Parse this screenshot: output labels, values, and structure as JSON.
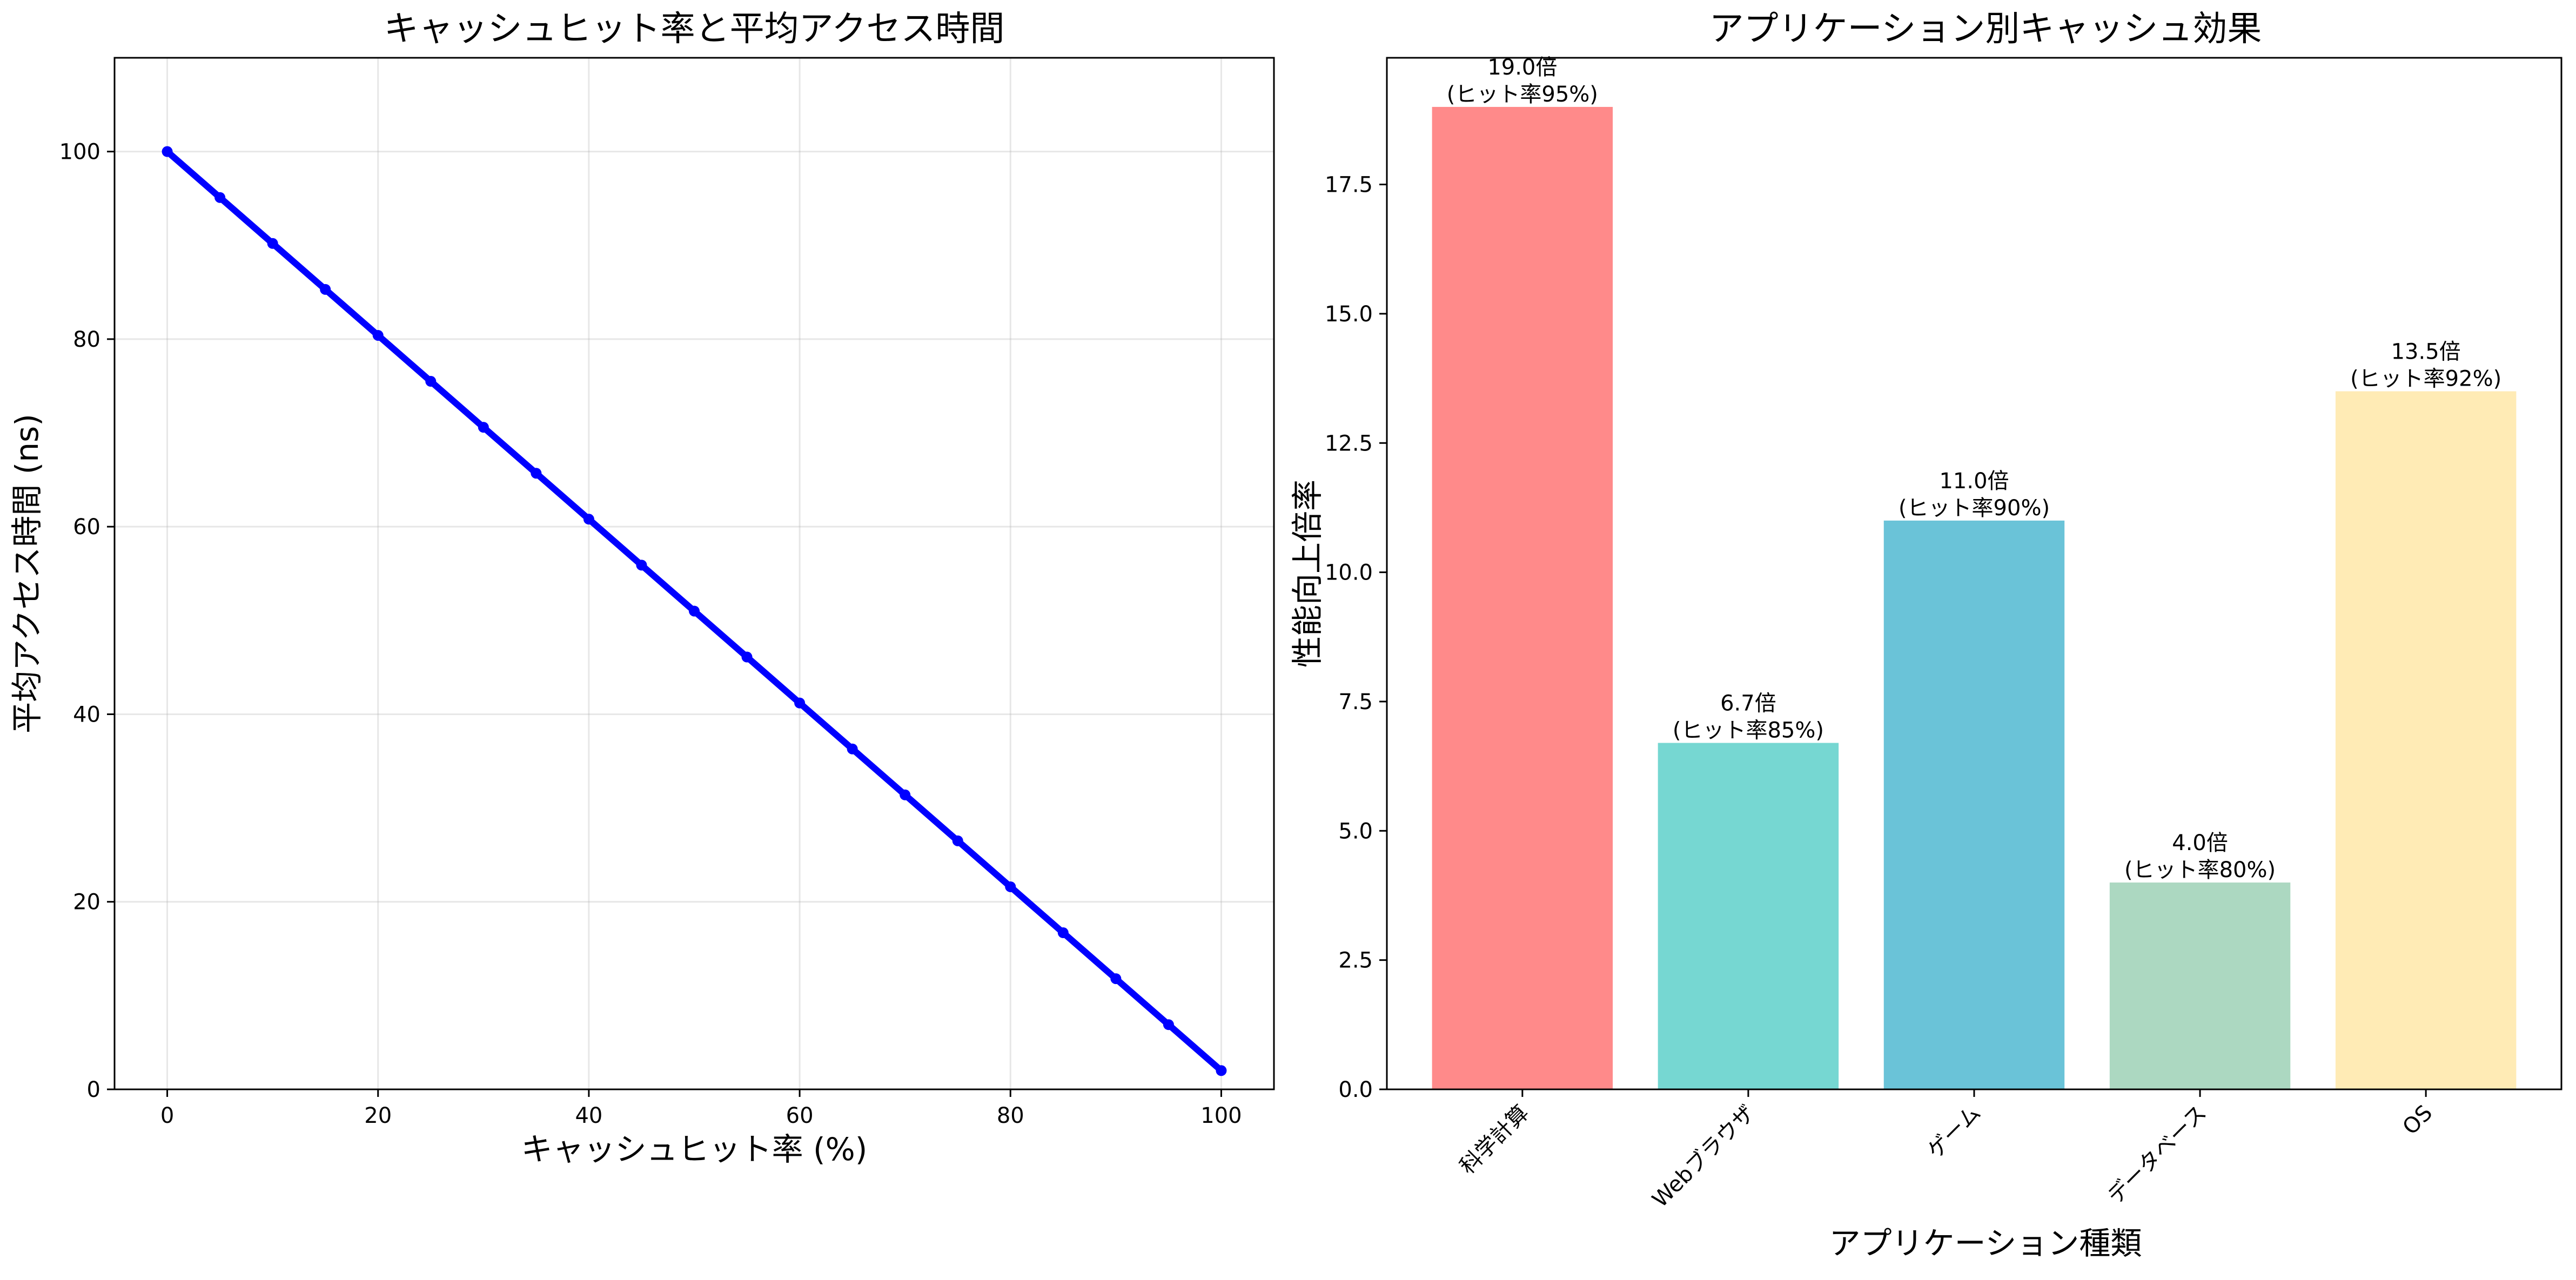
{
  "chart_data": [
    {
      "type": "line",
      "title": "キャッシュヒット率と平均アクセス時間",
      "xlabel": "キャッシュヒット率 (%)",
      "ylabel": "平均アクセス時間 (ns)",
      "xlim": [
        -5,
        105
      ],
      "ylim": [
        0,
        110
      ],
      "xticks": [
        0,
        20,
        40,
        60,
        80,
        100
      ],
      "yticks": [
        0,
        20,
        40,
        60,
        80,
        100
      ],
      "grid": true,
      "series": [
        {
          "color": "#0000ff",
          "marker": "circle",
          "x": [
            0,
            5,
            10,
            15,
            20,
            25,
            30,
            35,
            40,
            45,
            50,
            55,
            60,
            65,
            70,
            75,
            80,
            85,
            90,
            95,
            100
          ],
          "y": [
            100,
            95.1,
            90.2,
            85.3,
            80.4,
            75.5,
            70.6,
            65.7,
            60.8,
            55.9,
            51.0,
            46.1,
            41.2,
            36.3,
            31.4,
            26.5,
            21.6,
            16.7,
            11.8,
            6.9,
            2.0
          ]
        }
      ]
    },
    {
      "type": "bar",
      "title": "アプリケーション別キャッシュ効果",
      "xlabel": "アプリケーション種類",
      "ylabel": "性能向上倍率",
      "ylim": [
        0,
        19.95
      ],
      "yticks": [
        0,
        2.5,
        5,
        7.5,
        10,
        12.5,
        15,
        17.5
      ],
      "ytick_labels": [
        "0.0",
        "2.5",
        "5.0",
        "7.5",
        "10.0",
        "12.5",
        "15.0",
        "17.5"
      ],
      "grid": false,
      "categories": [
        "科学計算",
        "Webブラウザ",
        "ゲーム",
        "データベース",
        "OS"
      ],
      "tick_rotation": 45,
      "values": [
        19.0,
        6.7,
        11.0,
        4.0,
        13.5
      ],
      "colors": [
        "#ff8a8a",
        "#76d7d2",
        "#6ac3d8",
        "#acd8c1",
        "#ffebb5"
      ],
      "data_labels": [
        [
          "19.0倍",
          "(ヒット率95%)"
        ],
        [
          "6.7倍",
          "(ヒット率85%)"
        ],
        [
          "11.0倍",
          "(ヒット率90%)"
        ],
        [
          "4.0倍",
          "(ヒット率80%)"
        ],
        [
          "13.5倍",
          "(ヒット率92%)"
        ]
      ]
    }
  ]
}
